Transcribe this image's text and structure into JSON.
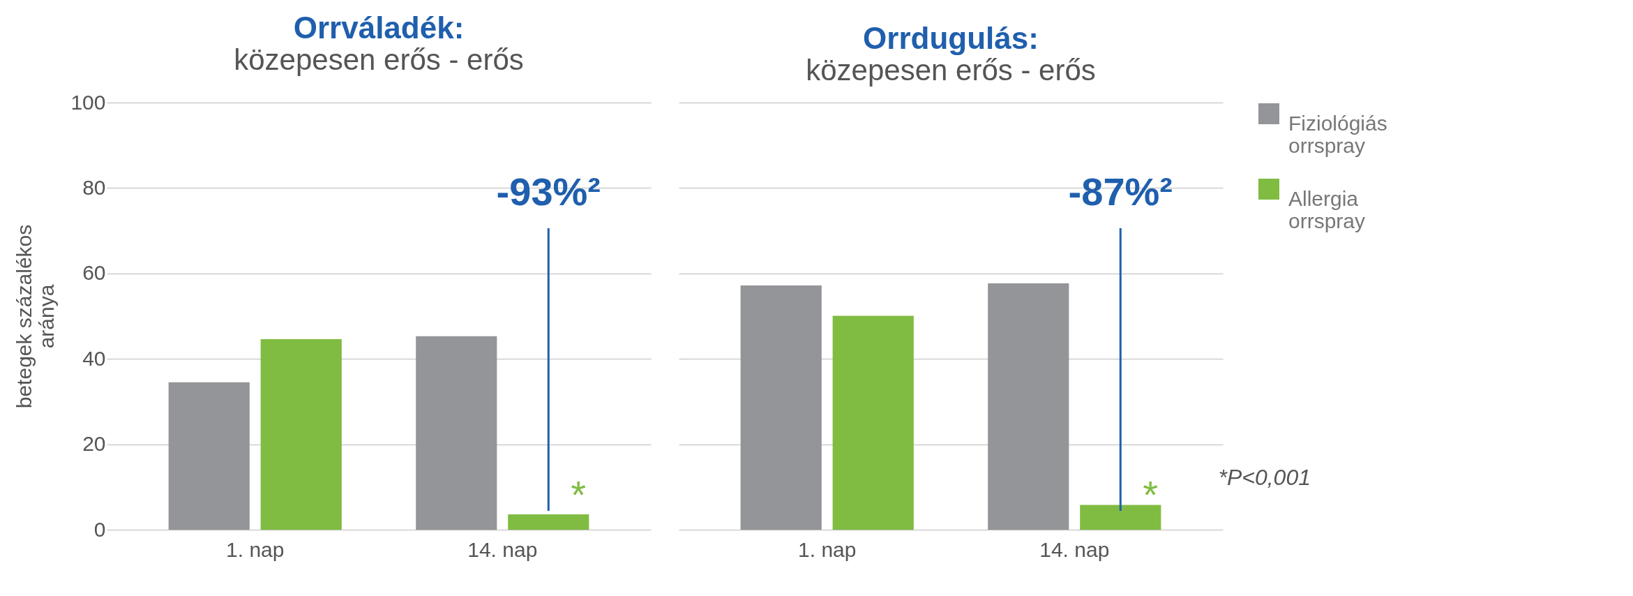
{
  "chart_data": [
    {
      "type": "bar",
      "title": "Orrváladék:",
      "subtitle": "közepesen erős - erős",
      "ylabel": "betegek százalékos aránya",
      "categories": [
        "1. nap",
        "14. nap"
      ],
      "series": [
        {
          "name": "Fiziológiás orrspray",
          "color": "#939598",
          "values": [
            34.5,
            45.3
          ]
        },
        {
          "name": "Allergia orrspray",
          "color": "#80bc41",
          "values": [
            44.6,
            3.6
          ]
        }
      ],
      "ylim": [
        0,
        100
      ],
      "yticks": [
        0,
        20,
        40,
        60,
        80,
        100
      ],
      "grid": "y",
      "legend": "right",
      "annotations": [
        "-93%²",
        "*"
      ]
    },
    {
      "type": "bar",
      "title": "Orrdugulás:",
      "subtitle": "közepesen erős - erős",
      "categories": [
        "1. nap",
        "14. nap"
      ],
      "series": [
        {
          "name": "Fiziológiás orrspray",
          "color": "#939598",
          "values": [
            57.2,
            57.7
          ]
        },
        {
          "name": "Allergia orrspray",
          "color": "#80bc41",
          "values": [
            50.1,
            5.8
          ]
        }
      ],
      "ylim": [
        0,
        100
      ],
      "yticks": [
        0,
        20,
        40,
        60,
        80,
        100
      ],
      "grid": "y",
      "legend": "right",
      "tick_labels": "x",
      "annotations": [
        "-87%²",
        "*",
        "*P<0,001"
      ]
    }
  ]
}
